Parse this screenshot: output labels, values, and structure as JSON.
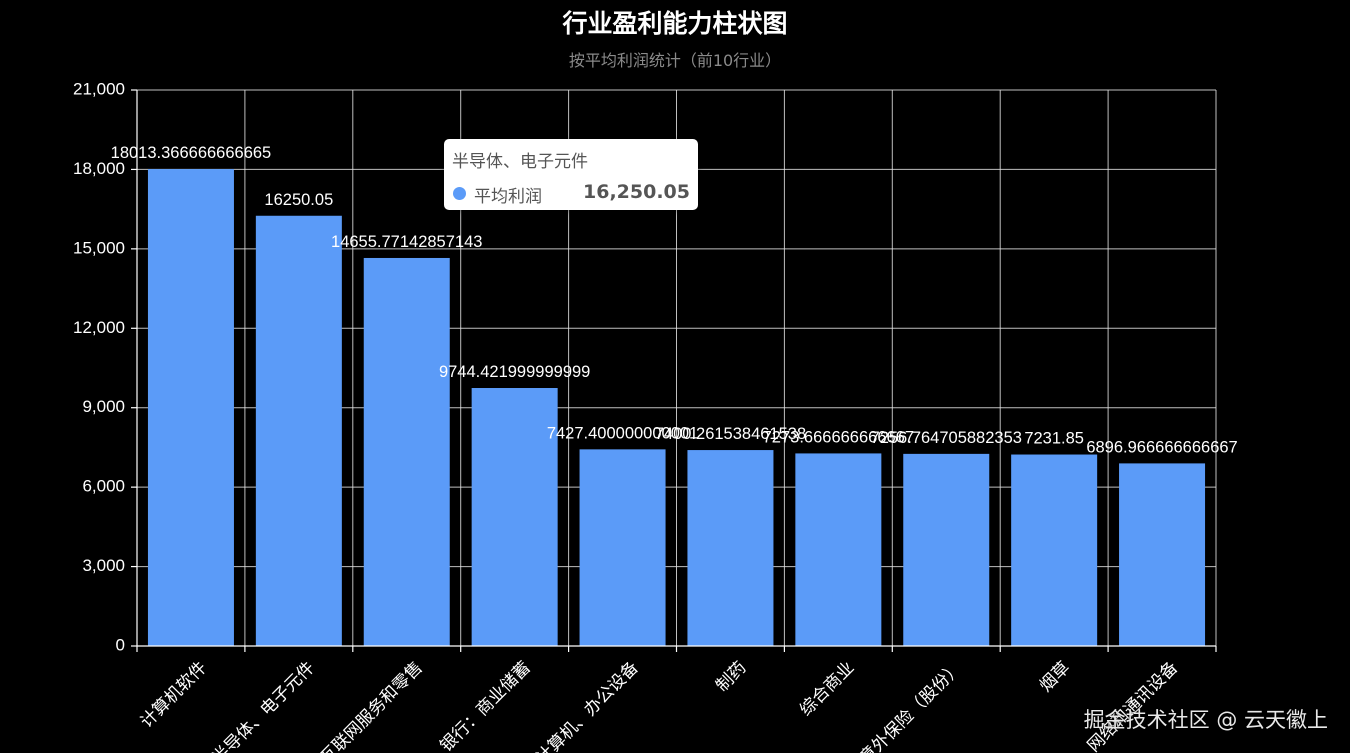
{
  "chart_data": {
    "type": "bar",
    "title": "行业盈利能力柱状图",
    "subtitle": "按平均利润统计（前10行业）",
    "categories": [
      "计算机软件",
      "半导体、电子元件",
      "互联网服务和零售",
      "银行：商业储蓄",
      "计算机、办公设备",
      "制药",
      "综合商业",
      "意外保险（股份）",
      "烟草",
      "网络和通讯设备"
    ],
    "series": [
      {
        "name": "平均利润",
        "values": [
          18013.366666666665,
          16250.05,
          14655.77142857143,
          9744.421999999999,
          7427.400000000001,
          7400.261538461538,
          7273.666666666667,
          7256.764705882353,
          7231.85,
          6896.966666666667
        ],
        "data_labels": [
          "18013.366666666665",
          "16250.05",
          "14655.77142857143",
          "9744.421999999999",
          "7427.400000000001",
          "7400.261538461538",
          "7273.666666666667",
          "7256.764705882353",
          "7231.85",
          "6896.966666666667"
        ]
      }
    ],
    "ylim": [
      0,
      21000
    ],
    "yticks": [
      0,
      3000,
      6000,
      9000,
      12000,
      15000,
      18000,
      21000
    ],
    "ytick_labels": [
      "0",
      "3,000",
      "6,000",
      "9,000",
      "12,000",
      "15,000",
      "18,000",
      "21,000"
    ],
    "grid": true,
    "colors": {
      "bar": "#5b9bf8",
      "bar_edge": "#5487e6",
      "grid": "#e0e0e0",
      "background": "#000000",
      "text": "#ffffff"
    }
  },
  "tooltip": {
    "title": "半导体、电子元件",
    "series_name": "平均利润",
    "value": "16,250.05",
    "marker_color": "#5b9bf8"
  },
  "watermark": "掘金技术社区 @ 云天徽上"
}
